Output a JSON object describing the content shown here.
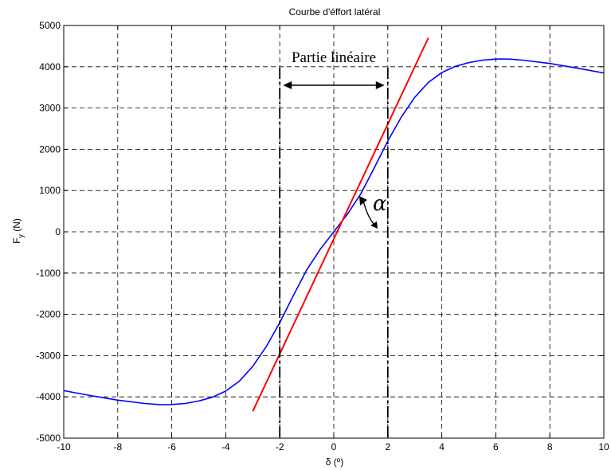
{
  "chart_data": {
    "type": "line",
    "title": "Courbe d'éffort latéral",
    "xlabel": "δ (º)",
    "ylabel_main": "F",
    "ylabel_sub": "y",
    "ylabel_unit": " (N)",
    "xlim": [
      -10,
      10
    ],
    "ylim": [
      -5000,
      5000
    ],
    "xticks": [
      -10,
      -8,
      -6,
      -4,
      -2,
      0,
      2,
      4,
      6,
      8,
      10
    ],
    "yticks": [
      -5000,
      -4000,
      -3000,
      -2000,
      -1000,
      0,
      1000,
      2000,
      3000,
      4000,
      5000
    ],
    "grid": true,
    "series": [
      {
        "color": "#0000ff",
        "x": [
          -10,
          -9,
          -8,
          -7,
          -6.5,
          -6.2,
          -6,
          -5.5,
          -5,
          -4.5,
          -4,
          -3.5,
          -3,
          -2.5,
          -2,
          -1.5,
          -1,
          -0.5,
          0,
          0.5,
          1,
          1.5,
          2,
          2.5,
          3,
          3.5,
          4,
          4.5,
          5,
          5.5,
          6,
          6.2,
          6.5,
          7,
          8,
          9,
          10
        ],
        "y": [
          -3850,
          -3970,
          -4080,
          -4160,
          -4185,
          -4190,
          -4185,
          -4160,
          -4100,
          -4010,
          -3860,
          -3620,
          -3260,
          -2780,
          -2200,
          -1550,
          -920,
          -420,
          0,
          420,
          920,
          1550,
          2200,
          2780,
          3260,
          3620,
          3860,
          4010,
          4100,
          4160,
          4185,
          4190,
          4185,
          4160,
          4080,
          3970,
          3850
        ]
      },
      {
        "color": "#ff0000",
        "x": [
          -3,
          3.5
        ],
        "y": [
          -4350,
          4700
        ]
      }
    ],
    "annotations": {
      "region_label": "Partie linéaire",
      "region_x": [
        -2,
        2
      ],
      "alpha_label": "α"
    }
  }
}
